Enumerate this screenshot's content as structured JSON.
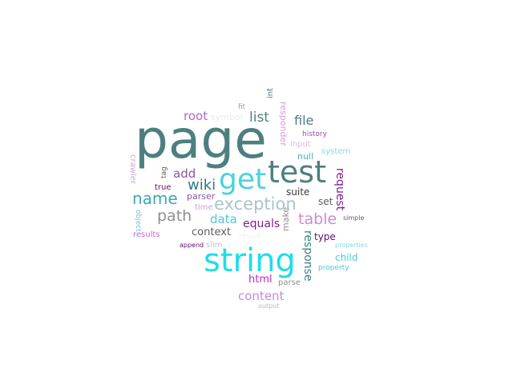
{
  "words": [
    {
      "id": "page",
      "text": "page",
      "color": "#4e7f80"
    },
    {
      "id": "string",
      "text": "string",
      "color": "#1fdde8"
    },
    {
      "id": "test",
      "text": "test",
      "color": "#4e7f80"
    },
    {
      "id": "get",
      "text": "get",
      "color": "#4cd2dc"
    },
    {
      "id": "exception",
      "text": "exception",
      "color": "#a9c4c9"
    },
    {
      "id": "name",
      "text": "name",
      "color": "#39a9b2"
    },
    {
      "id": "table",
      "text": "table",
      "color": "#cf8ad6"
    },
    {
      "id": "path",
      "text": "path",
      "color": "#8f8f8f"
    },
    {
      "id": "wiki",
      "text": "wiki",
      "color": "#2d7c80"
    },
    {
      "id": "list",
      "text": "list",
      "color": "#4e7f80"
    },
    {
      "id": "file",
      "text": "file",
      "color": "#4e7f80"
    },
    {
      "id": "root",
      "text": "root",
      "color": "#b663cf"
    },
    {
      "id": "data",
      "text": "data",
      "color": "#4cc8d2"
    },
    {
      "id": "add",
      "text": "add",
      "color": "#8a56a8"
    },
    {
      "id": "content",
      "text": "content",
      "color": "#c68bd6"
    },
    {
      "id": "equals",
      "text": "equals",
      "color": "#7d1f8f"
    },
    {
      "id": "request",
      "text": "request",
      "color": "#7d1f8f"
    },
    {
      "id": "response",
      "text": "response",
      "color": "#3b7d80"
    },
    {
      "id": "context",
      "text": "context",
      "color": "#5f5f5f"
    },
    {
      "id": "html",
      "text": "html",
      "color": "#b22fc4"
    },
    {
      "id": "type",
      "text": "type",
      "color": "#5c1070"
    },
    {
      "id": "child",
      "text": "child",
      "color": "#4cc8d2"
    },
    {
      "id": "set",
      "text": "set",
      "color": "#5f5f5f"
    },
    {
      "id": "suite",
      "text": "suite",
      "color": "#3b3b3b"
    },
    {
      "id": "responder",
      "text": "responder",
      "color": "#d49ad8"
    },
    {
      "id": "make",
      "text": "make",
      "color": "#8f8f8f"
    },
    {
      "id": "parser",
      "text": "parser",
      "color": "#8a56a8"
    },
    {
      "id": "null",
      "text": "null",
      "color": "#4cb4b0"
    },
    {
      "id": "symbol",
      "text": "symbol",
      "color": "#e8ecef"
    },
    {
      "id": "slim",
      "text": "slim",
      "color": "#b7c4c9"
    },
    {
      "id": "crawler",
      "text": "crawler",
      "color": "#d2a4dc"
    },
    {
      "id": "system",
      "text": "system",
      "color": "#8ad8e0"
    },
    {
      "id": "input",
      "text": "input",
      "color": "#e0b4e8"
    },
    {
      "id": "results",
      "text": "results",
      "color": "#c467d6"
    },
    {
      "id": "parse",
      "text": "parse",
      "color": "#8f8f8f"
    },
    {
      "id": "true",
      "text": "true",
      "color": "#5c1070"
    },
    {
      "id": "time",
      "text": "time",
      "color": "#d49ad8"
    },
    {
      "id": "result",
      "text": "result",
      "color": "#eef2f4"
    },
    {
      "id": "property",
      "text": "property",
      "color": "#4cc8d2"
    },
    {
      "id": "object",
      "text": "object",
      "color": "#6fc4d2"
    },
    {
      "id": "int",
      "text": "int",
      "color": "#4e7f80"
    },
    {
      "id": "fit",
      "text": "fit",
      "color": "#8fa8a8"
    },
    {
      "id": "history",
      "text": "history",
      "color": "#8a56a8"
    },
    {
      "id": "tag",
      "text": "tag",
      "color": "#5f5f5f"
    },
    {
      "id": "simple",
      "text": "simple",
      "color": "#5f5f5f"
    },
    {
      "id": "append",
      "text": "append",
      "color": "#5c1070"
    },
    {
      "id": "properties",
      "text": "properties",
      "color": "#8ad8e0"
    },
    {
      "id": "output",
      "text": "output",
      "color": "#b7b7b7"
    }
  ]
}
